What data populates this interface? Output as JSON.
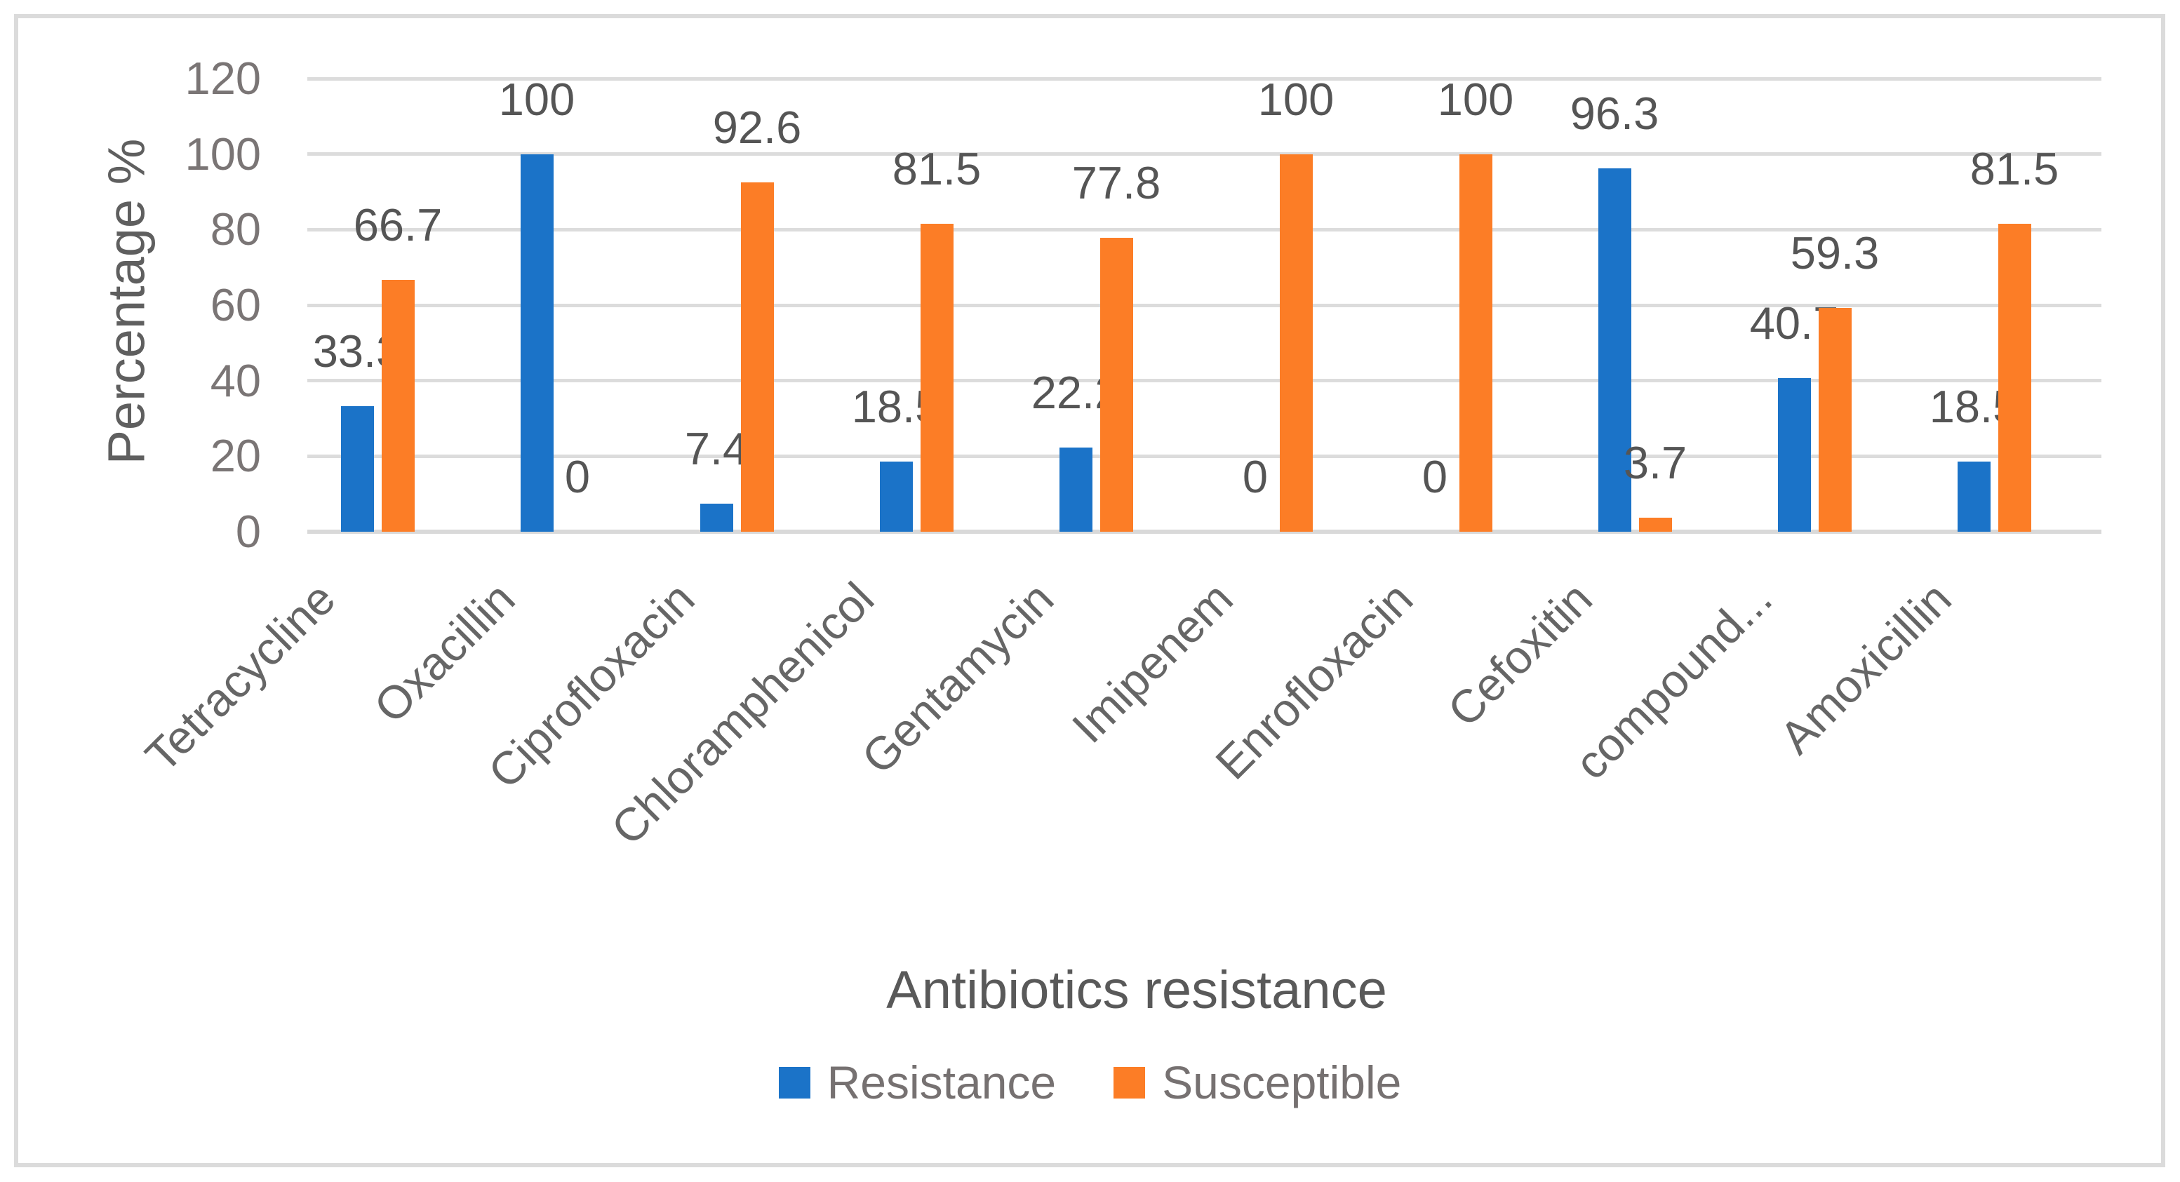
{
  "chart_data": {
    "type": "bar",
    "title": "",
    "xlabel": "Antibiotics resistance",
    "ylabel": "Percentage %",
    "ylim": [
      0,
      120
    ],
    "yticks": [
      0,
      20,
      40,
      60,
      80,
      100,
      120
    ],
    "grid": true,
    "legend_position": "bottom",
    "categories": [
      "Tetracycline",
      "Oxacillin",
      "Ciprofloxacin",
      "Chloramphenicol",
      "Gentamycin",
      "Imipenem",
      "Enrofloxacin",
      "Cefoxitin",
      "compound...",
      "Amoxicillin"
    ],
    "series": [
      {
        "name": "Resistance",
        "color": "#1B73C8",
        "values": [
          33.3,
          100,
          7.4,
          18.5,
          22.2,
          0,
          0,
          96.3,
          40.7,
          18.5
        ]
      },
      {
        "name": "Susceptible",
        "color": "#FC7D26",
        "values": [
          66.7,
          0,
          92.6,
          81.5,
          77.8,
          100,
          100,
          3.7,
          59.3,
          81.5
        ]
      }
    ]
  },
  "colors": {
    "resistance_bar": "#1B73C8",
    "susceptible_bar": "#FC7D26",
    "gridline": "#DCDCDC",
    "axis_line": "#D9D9D9",
    "tick_text": "#7A7575",
    "data_label_text": "#555555",
    "category_text": "#666666",
    "title_text": "#595959",
    "frame_border": "#DBDBDB"
  }
}
